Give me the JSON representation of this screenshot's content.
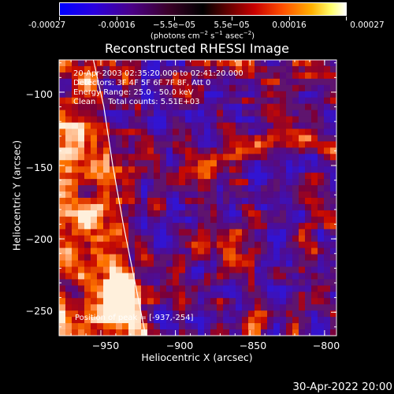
{
  "colorbar": {
    "tick_labels": [
      "-0.00027",
      "-0.00016",
      "−5.5e−05",
      "5.5e−05",
      "0.00016",
      "0.00027"
    ],
    "unit_prefix": "(photons cm",
    "unit_exp1": "−2",
    "unit_mid1": " s",
    "unit_exp2": "−1",
    "unit_mid2": " asec",
    "unit_exp3": "−2",
    "unit_suffix": ")"
  },
  "info": {
    "time_range": "20-Apr-2003 02:35:20.000 to 02:41:20.000",
    "detectors": "Detectors: 3F 4F 5F 6F 7F 8F, Att 0",
    "energy": "Energy Range: 25.0 - 50.0 keV",
    "clean": "Clean     Total counts: 5.51E+03",
    "peak": "Position of peak = [-937,-254]"
  },
  "timestamp": "30-Apr-2022 20:00",
  "chart_data": {
    "type": "heatmap",
    "title": "Reconstructed RHESSI Image",
    "xlabel": "Heliocentric X (arcsec)",
    "ylabel": "Heliocentric Y (arcsec)",
    "xlim": [
      -978,
      -792
    ],
    "ylim": [
      -266,
      -78
    ],
    "x_ticks": [
      -950,
      -900,
      -850,
      -800
    ],
    "y_ticks": [
      -100,
      -150,
      -200,
      -250
    ],
    "x_tick_labels": [
      "−950",
      "−900",
      "−850",
      "−800"
    ],
    "y_tick_labels": [
      "−100",
      "−150",
      "−200",
      "−250"
    ],
    "colorscale_range": [
      -0.00027,
      0.00027
    ],
    "colorscale_ticks": [
      -0.00027,
      -0.00016,
      -5.5e-05,
      5.5e-05,
      0.00016,
      0.00027
    ],
    "peak_position": [
      -937,
      -254
    ],
    "limb_curve": [
      [
        -955,
        -78
      ],
      [
        -948,
        -110
      ],
      [
        -942,
        -150
      ],
      [
        -935,
        -190
      ],
      [
        -928,
        -225
      ],
      [
        -920,
        -266
      ]
    ],
    "notes": "Image intensity shown as blocky heatmap; bright sources near the solar limb at lower-left (around x=-945, y=-240)."
  }
}
